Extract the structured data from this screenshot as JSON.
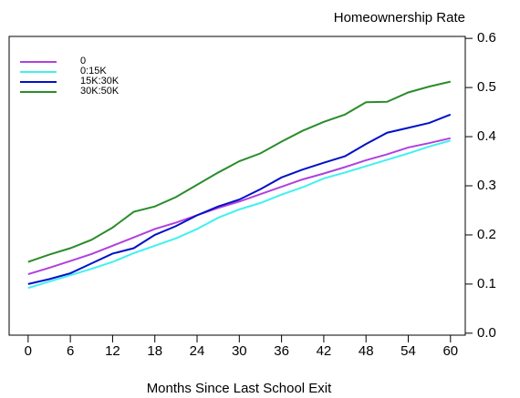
{
  "chart_data": {
    "type": "line",
    "ylabel": "Homeownership Rate",
    "xlabel": "Months Since Last School Exit",
    "x": [
      0,
      3,
      6,
      9,
      12,
      15,
      18,
      21,
      24,
      27,
      30,
      33,
      36,
      39,
      42,
      45,
      48,
      51,
      54,
      57,
      60
    ],
    "series": [
      {
        "name": "0",
        "color": "#b040e0",
        "values": [
          0.12,
          0.133,
          0.147,
          0.161,
          0.178,
          0.195,
          0.212,
          0.225,
          0.24,
          0.255,
          0.268,
          0.283,
          0.298,
          0.313,
          0.325,
          0.338,
          0.352,
          0.364,
          0.378,
          0.387,
          0.397
        ]
      },
      {
        "name": "0:15K",
        "color": "#40f0f0",
        "values": [
          0.092,
          0.105,
          0.118,
          0.131,
          0.145,
          0.163,
          0.178,
          0.193,
          0.212,
          0.235,
          0.252,
          0.265,
          0.282,
          0.297,
          0.315,
          0.327,
          0.34,
          0.353,
          0.366,
          0.38,
          0.392
        ]
      },
      {
        "name": "15K:30K",
        "color": "#0010c8",
        "values": [
          0.1,
          0.11,
          0.122,
          0.142,
          0.162,
          0.173,
          0.2,
          0.218,
          0.24,
          0.258,
          0.272,
          0.293,
          0.317,
          0.333,
          0.347,
          0.36,
          0.385,
          0.408,
          0.418,
          0.428,
          0.445
        ]
      },
      {
        "name": "30K:50K",
        "color": "#2a8c2a",
        "values": [
          0.145,
          0.16,
          0.173,
          0.19,
          0.215,
          0.247,
          0.258,
          0.277,
          0.302,
          0.327,
          0.35,
          0.366,
          0.39,
          0.412,
          0.43,
          0.445,
          0.47,
          0.471,
          0.49,
          0.502,
          0.512
        ]
      }
    ],
    "xlim": [
      -2.7,
      62.1
    ],
    "xticks": [
      0,
      6,
      12,
      18,
      24,
      30,
      36,
      42,
      48,
      54,
      60
    ],
    "ylim": [
      -0.004,
      0.604
    ],
    "yticks": [
      {
        "value": 0,
        "label": "0.0"
      },
      0.1,
      0.2,
      0.3,
      0.4,
      0.5,
      0.6
    ],
    "legend": "upper-left"
  }
}
